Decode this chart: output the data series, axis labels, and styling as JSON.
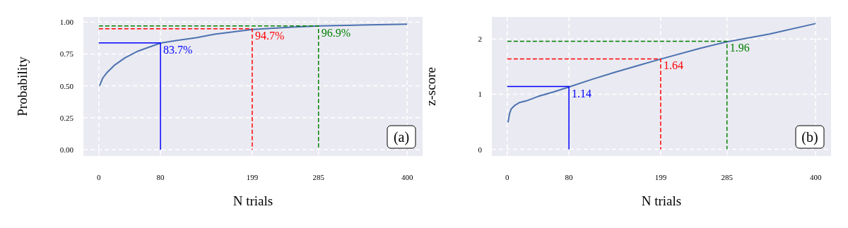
{
  "chart_data": [
    {
      "type": "line",
      "xlabel": "N trials",
      "ylabel": "Probability",
      "xlim": [
        -20,
        420
      ],
      "ylim": [
        -0.05,
        1.04
      ],
      "xticks": [
        0,
        80,
        199,
        285,
        400
      ],
      "yticks": [
        {
          "value": 0,
          "label": "0.00"
        },
        {
          "value": 0.25,
          "label": "0.25"
        },
        {
          "value": 0.5,
          "label": "0.50"
        },
        {
          "value": 0.75,
          "label": "0.75"
        },
        {
          "value": 1,
          "label": "1.00"
        }
      ],
      "grid": true,
      "series": [
        {
          "color": "#4c72b0",
          "x": [
            1,
            5,
            10,
            20,
            34,
            50,
            80,
            100,
            126,
            150,
            199,
            250,
            285,
            330,
            400
          ],
          "values": [
            0.5,
            0.56,
            0.6,
            0.66,
            0.72,
            0.77,
            0.835,
            0.855,
            0.877,
            0.905,
            0.942,
            0.96,
            0.969,
            0.975,
            0.983
          ]
        },
        {
          "color": "#0000ff",
          "line_style": "solid",
          "x": [
            0,
            80,
            80
          ],
          "values": [
            0.837,
            0.837,
            0
          ]
        },
        {
          "color": "#ff0000",
          "line_style": "dashed",
          "x": [
            0,
            199,
            199
          ],
          "values": [
            0.947,
            0.947,
            0
          ]
        },
        {
          "color": "#008000",
          "line_style": "dashed",
          "x": [
            0,
            285,
            285
          ],
          "values": [
            0.969,
            0.969,
            0
          ]
        }
      ],
      "annotations": [
        {
          "text": "83.7%",
          "x": 80,
          "y": 0.837
        },
        {
          "text": "94.7%",
          "x": 199,
          "y": 0.947
        },
        {
          "text": "96.9%",
          "x": 285,
          "y": 0.969
        },
        "(a)"
      ]
    },
    {
      "type": "line",
      "xlabel": "N trials",
      "ylabel": "z-score",
      "xlim": [
        -20,
        420
      ],
      "ylim": [
        -0.12,
        2.4
      ],
      "xticks": [
        0,
        80,
        199,
        285,
        400
      ],
      "yticks": [
        0,
        1,
        2
      ],
      "grid": true,
      "series": [
        {
          "color": "#4c72b0",
          "x": [
            1,
            3,
            5,
            10,
            16,
            25,
            40,
            60,
            80,
            110,
            140,
            170,
            200,
            250,
            285,
            340,
            400
          ],
          "values": [
            0.49,
            0.65,
            0.73,
            0.8,
            0.85,
            0.88,
            0.96,
            1.04,
            1.13,
            1.27,
            1.4,
            1.52,
            1.64,
            1.83,
            1.95,
            2.09,
            2.28
          ]
        },
        {
          "color": "#0000ff",
          "line_style": "solid",
          "x": [
            0,
            80,
            80
          ],
          "values": [
            1.14,
            1.14,
            0
          ]
        },
        {
          "color": "#ff0000",
          "line_style": "dashed",
          "x": [
            0,
            199,
            199
          ],
          "values": [
            1.64,
            1.64,
            0
          ]
        },
        {
          "color": "#008000",
          "line_style": "dashed",
          "x": [
            0,
            285,
            285
          ],
          "values": [
            1.96,
            1.96,
            0
          ]
        }
      ],
      "annotations": [
        {
          "text": "1.14",
          "x": 80,
          "y": 1.14
        },
        {
          "text": "1.64",
          "x": 199,
          "y": 1.64
        },
        {
          "text": "1.96",
          "x": 285,
          "y": 1.96
        },
        "(b)"
      ]
    }
  ]
}
